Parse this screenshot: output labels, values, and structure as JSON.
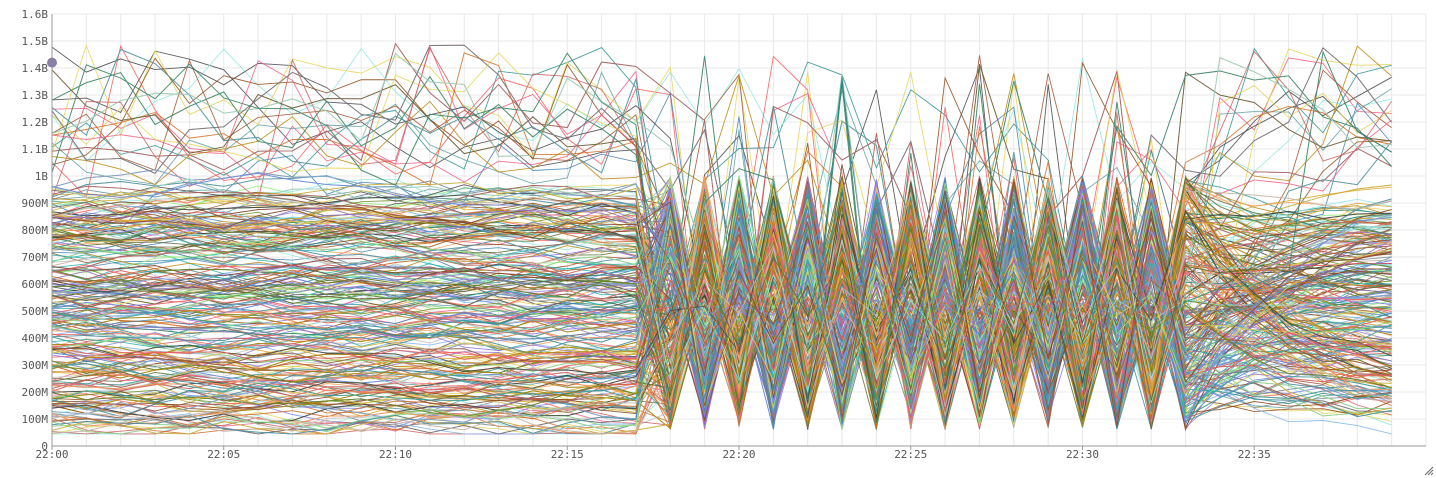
{
  "chart_data": {
    "type": "line",
    "title": "",
    "xlabel": "",
    "ylabel": "",
    "x_range": [
      "22:00",
      "22:40"
    ],
    "x_tick_labels": [
      "22:00",
      "22:05",
      "22:10",
      "22:15",
      "22:20",
      "22:25",
      "22:30",
      "22:35"
    ],
    "x_tick_minutes": [
      0,
      5,
      10,
      15,
      20,
      25,
      30,
      35
    ],
    "ylim": [
      0,
      1600000000
    ],
    "y_ticks": [
      {
        "value": 0,
        "label": "0"
      },
      {
        "value": 100000000,
        "label": "100M"
      },
      {
        "value": 200000000,
        "label": "200M"
      },
      {
        "value": 300000000,
        "label": "300M"
      },
      {
        "value": 400000000,
        "label": "400M"
      },
      {
        "value": 500000000,
        "label": "500M"
      },
      {
        "value": 600000000,
        "label": "600M"
      },
      {
        "value": 700000000,
        "label": "700M"
      },
      {
        "value": 800000000,
        "label": "800M"
      },
      {
        "value": 900000000,
        "label": "900M"
      },
      {
        "value": 1000000000,
        "label": "1B"
      },
      {
        "value": 1100000000,
        "label": "1.1B"
      },
      {
        "value": 1200000000,
        "label": "1.2B"
      },
      {
        "value": 1300000000,
        "label": "1.3B"
      },
      {
        "value": 1400000000,
        "label": "1.4B"
      },
      {
        "value": 1500000000,
        "label": "1.5B"
      },
      {
        "value": 1600000000,
        "label": "1.6B"
      }
    ],
    "grid": true,
    "legend": "none",
    "series_count": 400,
    "series_note_visible": false,
    "regimes": [
      {
        "from_minute": 0,
        "to_minute": 17,
        "behavior": "stable",
        "typical_range": [
          50000000,
          1000000000
        ],
        "outlier_range": [
          1000000000,
          1520000000
        ]
      },
      {
        "from_minute": 17,
        "to_minute": 34,
        "behavior": "oscillating",
        "typical_range": [
          50000000,
          1000000000
        ],
        "outlier_range": [
          1000000000,
          1520000000
        ]
      },
      {
        "from_minute": 34,
        "to_minute": 40,
        "behavior": "stable",
        "typical_range": [
          50000000,
          1000000000
        ],
        "outlier_range": [
          1000000000,
          1500000000
        ]
      }
    ],
    "palette": [
      "#7cb5ec",
      "#434348",
      "#90ed7d",
      "#f7a35c",
      "#8085e9",
      "#f15c80",
      "#e4d354",
      "#2b908f",
      "#f45b5b",
      "#91e8e1",
      "#a0522d",
      "#6b8e23",
      "#4682b4",
      "#c0c0c0",
      "#8b4513",
      "#556b2f",
      "#9370db",
      "#cd5c5c",
      "#20b2aa",
      "#daa520",
      "#708090",
      "#b8860b",
      "#5f9ea0",
      "#d2691e"
    ]
  }
}
